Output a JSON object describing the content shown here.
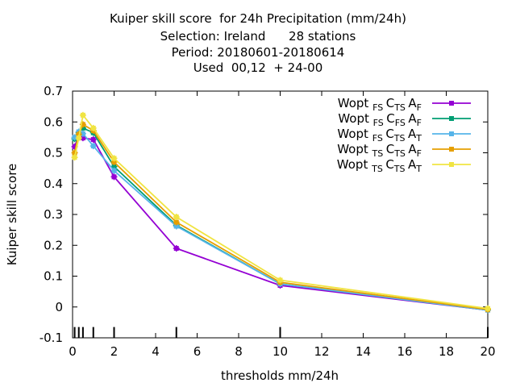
{
  "chart_data": {
    "type": "line",
    "title_lines": [
      "Kuiper skill score  for 24h Precipitation (mm/24h)",
      "Selection: Ireland      28 stations",
      "Period: 20180601-20180614",
      "Used  00,12  + 24-00"
    ],
    "xlabel": "thresholds mm/24h",
    "ylabel": "Kuiper skill score",
    "xlim": [
      0,
      20
    ],
    "ylim": [
      -0.1,
      0.7
    ],
    "xticks": [
      0,
      2,
      4,
      6,
      8,
      10,
      12,
      14,
      16,
      18,
      20
    ],
    "yticks": [
      -0.1,
      0,
      0.1,
      0.2,
      0.3,
      0.4,
      0.5,
      0.6,
      0.7
    ],
    "ytick_labels": [
      "-0.1",
      "0",
      "0.1",
      "0.2",
      "0.3",
      "0.4",
      "0.5",
      "0.6",
      "0.7"
    ],
    "grid": false,
    "legend_position": "top-right",
    "threshold_marks": [
      0.1,
      0.3,
      0.5,
      1,
      2,
      5,
      10,
      20
    ],
    "series": [
      {
        "name": {
          "base": "Wopt",
          "parts": [
            [
              "FS",
              "C"
            ],
            [
              "TS",
              "A"
            ],
            [
              "F",
              ""
            ]
          ]
        },
        "color": "#9400d3",
        "x": [
          0.1,
          0.3,
          0.5,
          1,
          2,
          5,
          10,
          20
        ],
        "y": [
          0.52,
          0.555,
          0.548,
          0.543,
          0.422,
          0.19,
          0.07,
          -0.01
        ]
      },
      {
        "name": {
          "base": "Wopt",
          "parts": [
            [
              "FS",
              "C"
            ],
            [
              "FS",
              "A"
            ],
            [
              "F",
              ""
            ]
          ]
        },
        "color": "#009e73",
        "x": [
          0.1,
          0.3,
          0.5,
          1,
          2,
          5,
          10,
          20
        ],
        "y": [
          0.545,
          0.565,
          0.58,
          0.565,
          0.455,
          0.265,
          0.075,
          -0.01
        ]
      },
      {
        "name": {
          "base": "Wopt",
          "parts": [
            [
              "FS",
              "C"
            ],
            [
              "TS",
              "A"
            ],
            [
              "T",
              ""
            ]
          ]
        },
        "color": "#56b4e9",
        "x": [
          0.1,
          0.3,
          0.5,
          1,
          2,
          5,
          10,
          20
        ],
        "y": [
          0.55,
          0.568,
          0.562,
          0.522,
          0.442,
          0.262,
          0.075,
          -0.01
        ]
      },
      {
        "name": {
          "base": "Wopt",
          "parts": [
            [
              "TS",
              "C"
            ],
            [
              "TS",
              "A"
            ],
            [
              "F",
              ""
            ]
          ]
        },
        "color": "#e69f00",
        "x": [
          0.1,
          0.3,
          0.5,
          1,
          2,
          5,
          10,
          20
        ],
        "y": [
          0.5,
          0.56,
          0.592,
          0.572,
          0.47,
          0.275,
          0.08,
          -0.008
        ]
      },
      {
        "name": {
          "base": "Wopt",
          "parts": [
            [
              "TS",
              "C"
            ],
            [
              "TS",
              "A"
            ],
            [
              "T",
              ""
            ]
          ]
        },
        "color": "#f0e442",
        "x": [
          0.1,
          0.3,
          0.5,
          1,
          2,
          5,
          10,
          20
        ],
        "y": [
          0.485,
          0.548,
          0.622,
          0.58,
          0.482,
          0.292,
          0.087,
          -0.005
        ]
      }
    ]
  }
}
